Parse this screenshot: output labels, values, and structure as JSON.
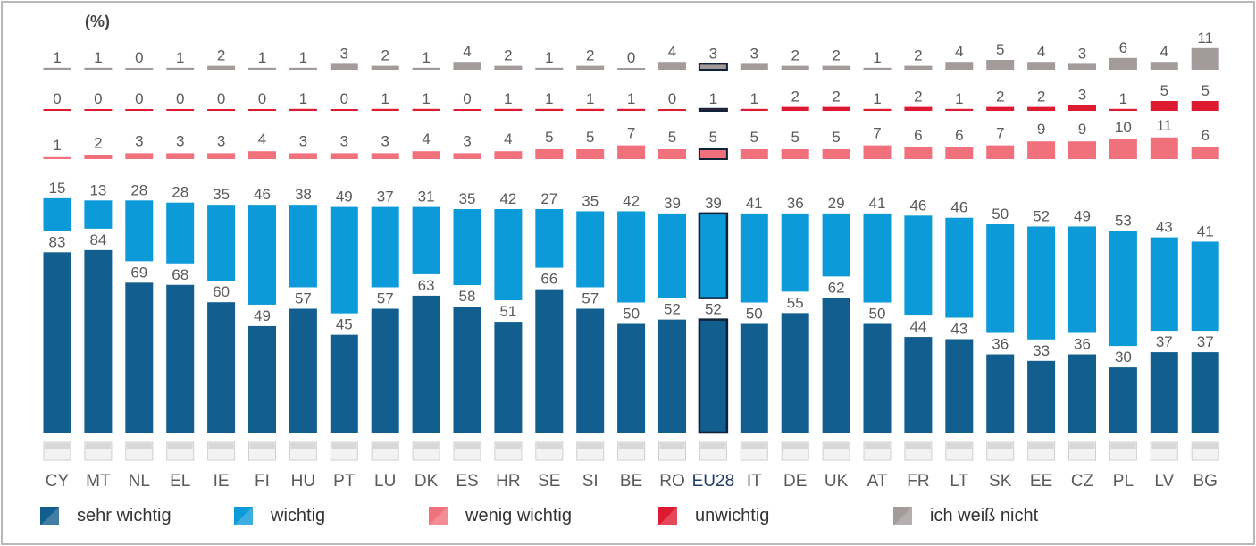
{
  "unit_label": "(%)",
  "legend": [
    {
      "label": "sehr wichtig",
      "color": "#125e8e"
    },
    {
      "label": "wichtig",
      "color": "#0d9ad8"
    },
    {
      "label": "wenig wichtig",
      "color": "#f0707b"
    },
    {
      "label": "unwichtig",
      "color": "#de1a30"
    },
    {
      "label": "ich weiß nicht",
      "color": "#a39a9a"
    }
  ],
  "chart_data": {
    "type": "bar",
    "stacked": true,
    "highlight_category": "EU28",
    "categories": [
      "CY",
      "MT",
      "NL",
      "EL",
      "IE",
      "FI",
      "HU",
      "PT",
      "LU",
      "DK",
      "ES",
      "HR",
      "SE",
      "SI",
      "BE",
      "RO",
      "EU28",
      "IT",
      "DE",
      "UK",
      "AT",
      "FR",
      "LT",
      "SK",
      "EE",
      "CZ",
      "PL",
      "LV",
      "BG"
    ],
    "series": [
      {
        "name": "sehr wichtig",
        "color": "#125e8e",
        "values": [
          83,
          84,
          69,
          68,
          60,
          49,
          57,
          45,
          57,
          63,
          58,
          51,
          66,
          57,
          50,
          52,
          52,
          50,
          55,
          62,
          50,
          44,
          43,
          36,
          33,
          36,
          30,
          37,
          37
        ]
      },
      {
        "name": "wichtig",
        "color": "#0d9ad8",
        "values": [
          15,
          13,
          28,
          28,
          35,
          46,
          38,
          49,
          37,
          31,
          35,
          42,
          27,
          35,
          42,
          39,
          39,
          41,
          36,
          29,
          41,
          46,
          46,
          50,
          52,
          49,
          53,
          43,
          41
        ]
      },
      {
        "name": "wenig wichtig",
        "color": "#f0707b",
        "values": [
          1,
          2,
          3,
          3,
          3,
          4,
          3,
          3,
          3,
          4,
          3,
          4,
          5,
          5,
          7,
          5,
          5,
          5,
          5,
          5,
          7,
          6,
          6,
          7,
          9,
          9,
          10,
          11,
          6
        ]
      },
      {
        "name": "unwichtig",
        "color": "#de1a30",
        "values": [
          0,
          0,
          0,
          0,
          0,
          0,
          1,
          0,
          1,
          1,
          0,
          1,
          1,
          1,
          1,
          0,
          1,
          1,
          2,
          2,
          1,
          2,
          1,
          2,
          2,
          3,
          1,
          5,
          5
        ]
      },
      {
        "name": "ich weiß nicht",
        "color": "#a39a9a",
        "values": [
          1,
          1,
          0,
          1,
          2,
          1,
          1,
          3,
          2,
          1,
          4,
          2,
          1,
          2,
          0,
          4,
          3,
          3,
          2,
          2,
          1,
          2,
          4,
          5,
          4,
          3,
          6,
          4,
          11
        ]
      }
    ]
  }
}
